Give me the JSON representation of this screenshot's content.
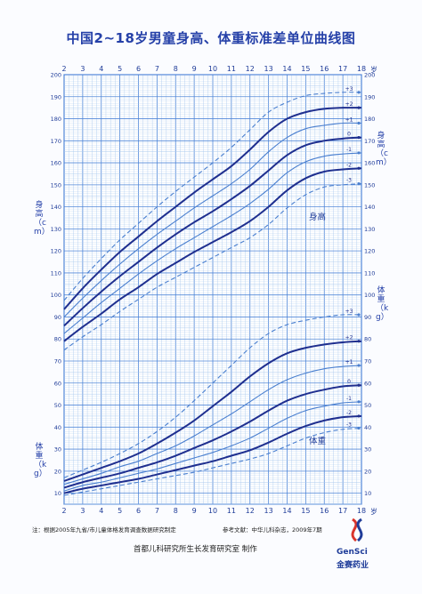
{
  "header": {
    "title": "中国2~18岁男童身高、体重标准差单位曲线图"
  },
  "axes": {
    "age_unit": "岁",
    "height_axis_label": "身高（cm）",
    "weight_axis_label": "体重（kg）"
  },
  "annotations": {
    "height": "身高",
    "weight": "体重"
  },
  "footer": {
    "note_left": "注：根据2005年九省/市儿童体格发育调查数据研究制定",
    "note_right": "参考文献：中华儿科杂志，2009年7期",
    "credit": "首都儿科研究所生长发育研究室 制作",
    "brand_en": "GenSci",
    "brand_cn": "金赛药业"
  },
  "colors": {
    "main_curve": "#1f2f8f",
    "dashed_curve": "#4a7fcf",
    "grid_major": "#4f86d8",
    "grid_minor": "#a8c8ee",
    "title": "#2540a8"
  },
  "chart_data": {
    "type": "line",
    "title": "中国2~18岁男童身高、体重标准差单位曲线图",
    "xlabel": "岁",
    "x": [
      2,
      3,
      4,
      5,
      6,
      7,
      8,
      9,
      10,
      11,
      12,
      13,
      14,
      15,
      16,
      17,
      18
    ],
    "xticks": [
      "2",
      "3",
      "4",
      "5",
      "6",
      "7",
      "8",
      "9",
      "10",
      "11",
      "12",
      "13",
      "14",
      "15",
      "16",
      "17",
      "18"
    ],
    "xlim": [
      2,
      18
    ],
    "y_left_ticks": [
      200,
      190,
      180,
      170,
      160,
      150,
      140,
      130,
      120,
      110,
      100,
      90,
      80,
      70,
      60,
      50,
      40,
      30,
      20,
      10
    ],
    "y_right_ticks": [
      200,
      190,
      180,
      170,
      160,
      150,
      140,
      130,
      120,
      110,
      100,
      90,
      80,
      70,
      60,
      50,
      40,
      30,
      20,
      10
    ],
    "height": {
      "ylabel": "身高（cm）",
      "series": [
        {
          "name": "+3",
          "values": [
            97.5,
            107.5,
            116.5,
            125.0,
            132.5,
            140.0,
            147.0,
            153.5,
            160.0,
            167.0,
            175.0,
            183.0,
            187.5,
            190.5,
            191.5,
            192.0,
            192.0
          ]
        },
        {
          "name": "+2",
          "values": [
            93.5,
            103.0,
            111.5,
            119.5,
            126.5,
            133.5,
            140.0,
            146.5,
            152.5,
            158.5,
            166.0,
            174.0,
            180.0,
            183.0,
            184.5,
            185.0,
            185.0
          ]
        },
        {
          "name": "+1",
          "values": [
            90.0,
            98.5,
            106.5,
            114.0,
            121.0,
            127.5,
            133.5,
            139.5,
            145.0,
            150.5,
            157.0,
            165.0,
            171.5,
            175.5,
            177.0,
            178.0,
            178.0
          ]
        },
        {
          "name": "0",
          "values": [
            86.0,
            94.0,
            101.5,
            108.5,
            115.0,
            121.5,
            127.5,
            133.0,
            138.0,
            143.5,
            149.5,
            156.5,
            163.5,
            168.0,
            170.0,
            171.0,
            171.5
          ]
        },
        {
          "name": "-1",
          "values": [
            82.5,
            89.5,
            96.5,
            103.0,
            109.5,
            115.5,
            121.0,
            126.0,
            131.0,
            136.0,
            141.5,
            148.0,
            155.5,
            160.5,
            163.0,
            164.0,
            164.5
          ]
        },
        {
          "name": "-2",
          "values": [
            79.0,
            85.5,
            91.5,
            98.0,
            103.5,
            109.5,
            114.5,
            119.5,
            124.0,
            128.5,
            133.5,
            140.0,
            147.5,
            153.0,
            156.0,
            157.0,
            157.5
          ]
        },
        {
          "name": "-3",
          "values": [
            75.0,
            81.0,
            86.5,
            92.5,
            98.0,
            103.5,
            108.0,
            112.5,
            117.0,
            121.5,
            126.0,
            132.0,
            139.5,
            145.5,
            149.0,
            150.0,
            150.5
          ]
        }
      ]
    },
    "weight": {
      "ylabel": "体重（kg）",
      "series": [
        {
          "name": "+3",
          "values": [
            17.0,
            20.5,
            24.0,
            28.0,
            32.5,
            38.0,
            44.5,
            52.0,
            60.0,
            68.0,
            76.0,
            82.5,
            86.5,
            88.5,
            90.0,
            91.0,
            91.0
          ]
        },
        {
          "name": "+2",
          "values": [
            15.5,
            18.5,
            21.5,
            24.5,
            28.0,
            32.5,
            37.5,
            43.0,
            49.5,
            56.0,
            63.0,
            69.0,
            73.5,
            76.0,
            77.5,
            78.5,
            79.0
          ]
        },
        {
          "name": "+1",
          "values": [
            14.0,
            16.5,
            19.0,
            22.0,
            24.5,
            28.0,
            31.5,
            36.0,
            41.0,
            46.0,
            51.5,
            57.0,
            61.5,
            64.5,
            66.5,
            67.5,
            68.0
          ]
        },
        {
          "name": "0",
          "values": [
            12.5,
            15.0,
            17.0,
            19.0,
            21.5,
            24.0,
            27.0,
            30.5,
            34.0,
            38.0,
            42.5,
            47.5,
            52.0,
            55.0,
            57.0,
            58.5,
            59.0
          ]
        },
        {
          "name": "-1",
          "values": [
            11.0,
            13.5,
            15.0,
            17.0,
            19.0,
            21.0,
            23.5,
            26.0,
            28.5,
            31.5,
            35.0,
            39.5,
            44.0,
            47.5,
            49.5,
            51.0,
            51.5
          ]
        },
        {
          "name": "-2",
          "values": [
            10.0,
            12.0,
            13.5,
            15.0,
            16.5,
            18.5,
            20.5,
            22.5,
            24.5,
            27.0,
            29.5,
            33.0,
            37.0,
            40.5,
            43.0,
            44.5,
            45.0
          ]
        },
        {
          "name": "-3",
          "values": [
            9.0,
            10.5,
            12.0,
            13.5,
            15.0,
            16.5,
            18.0,
            19.5,
            21.5,
            23.5,
            25.5,
            28.0,
            31.5,
            35.0,
            37.5,
            39.0,
            39.5
          ]
        }
      ]
    },
    "grid": true
  }
}
